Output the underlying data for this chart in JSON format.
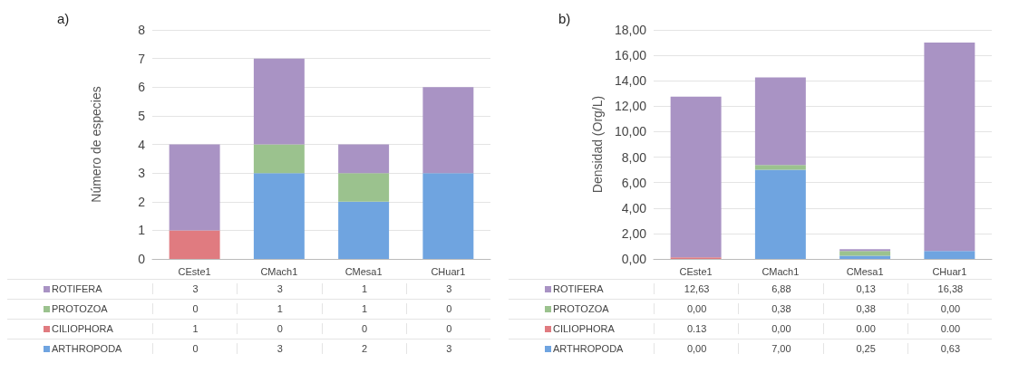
{
  "chart_data": [
    {
      "type": "bar",
      "title": "a)",
      "ylabel": "Número de especies",
      "categories": [
        "CEste1",
        "CMach1",
        "CMesa1",
        "CHuar1"
      ],
      "stacked": true,
      "ylim": [
        0,
        8
      ],
      "yticks": [
        0,
        1,
        2,
        3,
        4,
        5,
        6,
        7,
        8
      ],
      "grid": "y",
      "legend": "bottom",
      "data_labels": true,
      "series": [
        {
          "name": "ARTHROPODA",
          "color": "#6fa4e0",
          "values": [
            0,
            3,
            2,
            3
          ]
        },
        {
          "name": "CILIOPHORA",
          "color": "#e07b80",
          "values": [
            1,
            0,
            0,
            0
          ]
        },
        {
          "name": "PROTOZOA",
          "color": "#9bc28e",
          "values": [
            0,
            1,
            1,
            0
          ]
        },
        {
          "name": "ROTIFERA",
          "color": "#a993c4",
          "values": [
            3,
            3,
            1,
            3
          ]
        }
      ]
    },
    {
      "type": "bar",
      "title": "b)",
      "ylabel": "Densidad (Org/L)",
      "categories": [
        "CEste1",
        "CMach1",
        "CMesa1",
        "CHuar1"
      ],
      "stacked": true,
      "ylim": [
        0,
        18
      ],
      "yticks": [
        {
          "value": 0,
          "label": "0,00"
        },
        {
          "value": 2,
          "label": "2,00"
        },
        {
          "value": 4,
          "label": "4,00"
        },
        {
          "value": 6,
          "label": "6,00"
        },
        {
          "value": 8,
          "label": "8,00"
        },
        {
          "value": 10,
          "label": "10,00"
        },
        {
          "value": 12,
          "label": "12,00"
        },
        {
          "value": 14,
          "label": "14,00"
        },
        {
          "value": 16,
          "label": "16,00"
        },
        {
          "value": 18,
          "label": "18,00"
        }
      ],
      "grid": "y",
      "legend": "bottom",
      "series": [
        {
          "name": "ARTHROPODA",
          "color": "#6fa4e0",
          "values": [
            0,
            7,
            0.25,
            0.63
          ],
          "value_labels": [
            "0,00",
            "7,00",
            "0,25",
            "0,63"
          ]
        },
        {
          "name": "CILIOPHORA",
          "color": "#e07b80",
          "values": [
            0.13,
            0,
            0,
            0
          ],
          "value_labels": [
            "0.13",
            "0,00",
            "0.00",
            "0.00"
          ]
        },
        {
          "name": "PROTOZOA",
          "color": "#9bc28e",
          "values": [
            0,
            0.38,
            0.38,
            0
          ],
          "value_labels": [
            "0,00",
            "0,38",
            "0,38",
            "0,00"
          ]
        },
        {
          "name": "ROTIFERA",
          "color": "#a993c4",
          "values": [
            12.63,
            6.88,
            0.13,
            16.38
          ],
          "value_labels": [
            "12,63",
            "6,88",
            "0,13",
            "16,38"
          ]
        }
      ]
    }
  ]
}
